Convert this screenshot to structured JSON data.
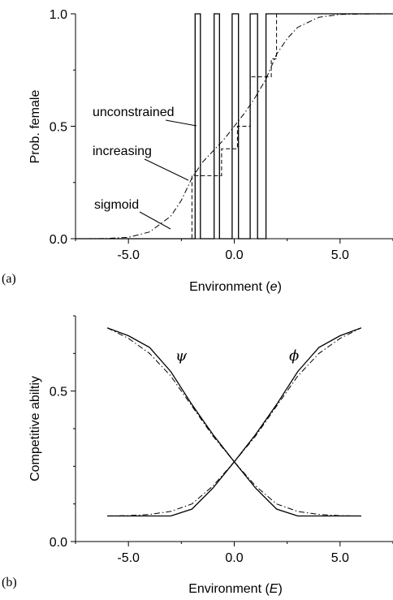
{
  "chart_data": [
    {
      "panel_label": "(a)",
      "type": "line",
      "xlabel": "Environment (e)",
      "xlabel_parts": {
        "before": "Environment (",
        "var": "e",
        "after": ")"
      },
      "ylabel": "Prob. female",
      "xlim": [
        -7.5,
        7.5
      ],
      "ylim": [
        0.0,
        1.0
      ],
      "x_ticks": [
        -5.0,
        0.0,
        5.0
      ],
      "x_tick_labels": [
        "-5.0",
        "0.0",
        "5.0"
      ],
      "y_ticks": [
        0.0,
        0.5,
        1.0
      ],
      "y_tick_labels": [
        "0.0",
        "0.5",
        "1.0"
      ],
      "grid": false,
      "annotations": [
        "unconstrained",
        "increasing",
        "sigmoid"
      ],
      "series": [
        {
          "name": "unconstrained",
          "style": "solid",
          "x": [
            -7.5,
            -2.05,
            -2.05,
            -1.85,
            -1.85,
            -1.6,
            -1.6,
            -0.95,
            -0.95,
            -0.7,
            -0.7,
            -0.1,
            -0.1,
            0.2,
            0.2,
            0.75,
            0.75,
            1.1,
            1.1,
            1.5,
            1.5,
            1.8,
            1.8,
            7.5
          ],
          "y": [
            0,
            0,
            0,
            0,
            1,
            1,
            0,
            0,
            1,
            1,
            0,
            0,
            1,
            1,
            0,
            0,
            1,
            1,
            0,
            0,
            1,
            1,
            1,
            1
          ]
        },
        {
          "name": "increasing",
          "style": "dashed",
          "x": [
            -7.5,
            -2.0,
            -2.0,
            -1.7,
            -1.7,
            -0.6,
            -0.6,
            0.15,
            0.15,
            0.6,
            0.6,
            0.75,
            0.75,
            1.75,
            1.75,
            2.0,
            2.0,
            7.5
          ],
          "y": [
            0,
            0,
            0.28,
            0.28,
            0.28,
            0.28,
            0.4,
            0.4,
            0.5,
            0.5,
            0.5,
            0.5,
            0.72,
            0.72,
            0.8,
            0.8,
            1.0,
            1.0
          ]
        },
        {
          "name": "sigmoid",
          "style": "dashdot",
          "x": [
            -7.0,
            -6.0,
            -5.0,
            -4.0,
            -3.0,
            -2.5,
            -2.0,
            -1.5,
            -1.0,
            -0.5,
            0.0,
            0.5,
            1.0,
            1.5,
            2.0,
            2.5,
            3.0,
            4.0,
            5.0,
            6.0,
            7.5
          ],
          "y": [
            0.0,
            0.001,
            0.006,
            0.03,
            0.1,
            0.17,
            0.27,
            0.34,
            0.39,
            0.44,
            0.5,
            0.56,
            0.63,
            0.71,
            0.82,
            0.89,
            0.94,
            0.985,
            0.997,
            0.999,
            1.0
          ]
        }
      ]
    },
    {
      "panel_label": "(b)",
      "type": "line",
      "xlabel": "Environment (E)",
      "xlabel_parts": {
        "before": "Environment (",
        "var": "E",
        "after": ")"
      },
      "ylabel": "Competitive abiltiy",
      "xlim": [
        -7.5,
        7.5
      ],
      "ylim": [
        0.0,
        0.75
      ],
      "x_ticks": [
        -5.0,
        0.0,
        5.0
      ],
      "x_tick_labels": [
        "-5.0",
        "0.0",
        "5.0"
      ],
      "y_ticks": [
        0.0,
        0.5
      ],
      "y_tick_labels": [
        "0.0",
        "0.5"
      ],
      "grid": false,
      "annotations": [
        "ψ",
        "ϕ"
      ],
      "series": [
        {
          "label": "ψ",
          "style": "solid",
          "x": [
            -6.0,
            -5.0,
            -4.0,
            -3.0,
            -2.0,
            -1.0,
            0.0,
            1.0,
            2.0,
            3.0,
            4.0,
            5.0,
            6.0
          ],
          "y": [
            0.71,
            0.684,
            0.645,
            0.565,
            0.455,
            0.355,
            0.265,
            0.178,
            0.108,
            0.085,
            0.085,
            0.085,
            0.085
          ]
        },
        {
          "label": "ϕ",
          "style": "solid",
          "x": [
            -6.0,
            -5.0,
            -4.0,
            -3.0,
            -2.0,
            -1.0,
            0.0,
            1.0,
            2.0,
            3.0,
            4.0,
            5.0,
            6.0
          ],
          "y": [
            0.085,
            0.085,
            0.085,
            0.085,
            0.108,
            0.178,
            0.265,
            0.355,
            0.455,
            0.565,
            0.645,
            0.684,
            0.71
          ]
        },
        {
          "style": "dashdot",
          "x": [
            -6.0,
            -5.0,
            -4.0,
            -3.0,
            -2.0,
            -1.0,
            0.0,
            1.0,
            2.0,
            3.0,
            4.0,
            5.0,
            6.0
          ],
          "y": [
            0.71,
            0.675,
            0.625,
            0.55,
            0.45,
            0.35,
            0.265,
            0.185,
            0.125,
            0.1,
            0.09,
            0.086,
            0.085
          ]
        },
        {
          "style": "dashdot",
          "x": [
            -6.0,
            -5.0,
            -4.0,
            -3.0,
            -2.0,
            -1.0,
            0.0,
            1.0,
            2.0,
            3.0,
            4.0,
            5.0,
            6.0
          ],
          "y": [
            0.085,
            0.086,
            0.09,
            0.1,
            0.125,
            0.185,
            0.265,
            0.35,
            0.45,
            0.55,
            0.625,
            0.675,
            0.71
          ]
        }
      ]
    }
  ]
}
